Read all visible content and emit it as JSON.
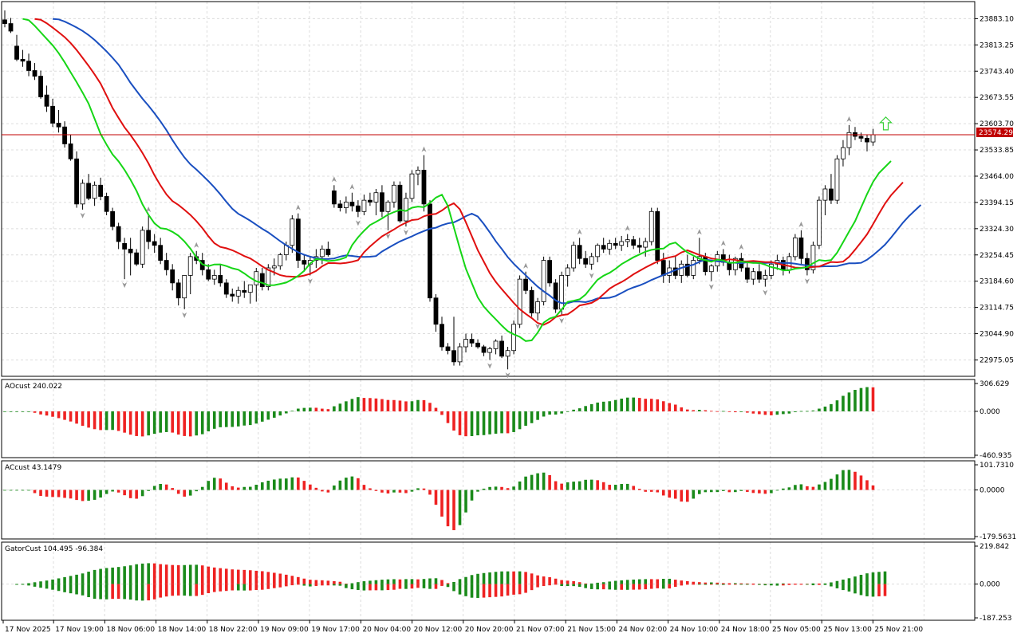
{
  "colors": {
    "background": "#ffffff",
    "grid": "#dcdcdc",
    "axis": "#000000",
    "bull_candle_body": "#ffffff",
    "bear_candle_body": "#000000",
    "candle_outline": "#000000",
    "jaw_line": "#1a4fc0",
    "teeth_line": "#e01010",
    "lips_line": "#16d616",
    "price_line": "#c00000",
    "price_label_bg": "#c00000",
    "price_label_text": "#ffffff",
    "hist_up": "#1a8a1a",
    "hist_down": "#ee2222",
    "fractal": "#999999",
    "signal_arrow": "#38d038"
  },
  "main": {
    "price_ticks": [
      "23883.10",
      "23813.25",
      "23743.40",
      "23673.55",
      "23603.70",
      "23533.85",
      "23464.00",
      "23394.15",
      "23324.30",
      "23254.45",
      "23184.60",
      "23114.75",
      "23044.90",
      "22975.05"
    ],
    "current_price": "23574.29"
  },
  "ao": {
    "label": "AOcust 240.022",
    "ticks": [
      "306.629",
      "0.000",
      "-460.935"
    ]
  },
  "ac": {
    "label": "ACcust 43.1479",
    "ticks": [
      "101.7310",
      "0.0000",
      "-179.5631"
    ]
  },
  "gator": {
    "label": "GatorCust 104.495 -96.384",
    "ticks": [
      "219.842",
      "0.000",
      "-187.253"
    ]
  },
  "time_axis": [
    "17 Nov 2025",
    "17 Nov 19:00",
    "18 Nov 06:00",
    "18 Nov 14:00",
    "18 Nov 22:00",
    "19 Nov 09:00",
    "19 Nov 17:00",
    "20 Nov 04:00",
    "20 Nov 12:00",
    "20 Nov 20:00",
    "21 Nov 07:00",
    "21 Nov 15:00",
    "24 Nov 02:00",
    "24 Nov 10:00",
    "24 Nov 18:00",
    "25 Nov 05:00",
    "25 Nov 13:00",
    "25 Nov 21:00"
  ],
  "chart_data": {
    "type": "candlestick",
    "symbol_scale": {
      "ylim": [
        22940,
        23920
      ]
    },
    "candles": [
      [
        23880,
        23905,
        23860,
        23870
      ],
      [
        23870,
        23885,
        23845,
        23850
      ],
      [
        23810,
        23840,
        23770,
        23775
      ],
      [
        23775,
        23800,
        23755,
        23770
      ],
      [
        23770,
        23790,
        23730,
        23745
      ],
      [
        23745,
        23765,
        23720,
        23730
      ],
      [
        23730,
        23745,
        23670,
        23675
      ],
      [
        23680,
        23705,
        23635,
        23650
      ],
      [
        23650,
        23670,
        23595,
        23605
      ],
      [
        23605,
        23640,
        23580,
        23595
      ],
      [
        23595,
        23610,
        23540,
        23550
      ],
      [
        23550,
        23575,
        23505,
        23510
      ],
      [
        23510,
        23530,
        23380,
        23390
      ],
      [
        23390,
        23455,
        23375,
        23445
      ],
      [
        23445,
        23470,
        23400,
        23405
      ],
      [
        23405,
        23450,
        23385,
        23440
      ],
      [
        23440,
        23460,
        23400,
        23410
      ],
      [
        23410,
        23420,
        23360,
        23370
      ],
      [
        23370,
        23380,
        23320,
        23330
      ],
      [
        23330,
        23340,
        23270,
        23290
      ],
      [
        23285,
        23300,
        23190,
        23270
      ],
      [
        23270,
        23300,
        23200,
        23260
      ],
      [
        23260,
        23270,
        23225,
        23230
      ],
      [
        23230,
        23330,
        23220,
        23320
      ],
      [
        23320,
        23360,
        23270,
        23290
      ],
      [
        23290,
        23310,
        23260,
        23280
      ],
      [
        23280,
        23300,
        23230,
        23240
      ],
      [
        23240,
        23260,
        23200,
        23215
      ],
      [
        23215,
        23230,
        23160,
        23180
      ],
      [
        23180,
        23190,
        23120,
        23140
      ],
      [
        23140,
        23200,
        23110,
        23200
      ],
      [
        23200,
        23260,
        23150,
        23250
      ],
      [
        23250,
        23265,
        23230,
        23240
      ],
      [
        23240,
        23260,
        23200,
        23215
      ],
      [
        23215,
        23230,
        23185,
        23190
      ],
      [
        23190,
        23215,
        23175,
        23200
      ],
      [
        23200,
        23230,
        23170,
        23180
      ],
      [
        23180,
        23190,
        23140,
        23150
      ],
      [
        23150,
        23165,
        23130,
        23145
      ],
      [
        23145,
        23170,
        23125,
        23160
      ],
      [
        23160,
        23185,
        23140,
        23155
      ],
      [
        23155,
        23175,
        23125,
        23175
      ],
      [
        23175,
        23220,
        23130,
        23210
      ],
      [
        23205,
        23220,
        23160,
        23170
      ],
      [
        23170,
        23230,
        23160,
        23220
      ],
      [
        23220,
        23245,
        23200,
        23225
      ],
      [
        23225,
        23260,
        23215,
        23255
      ],
      [
        23255,
        23290,
        23240,
        23280
      ],
      [
        23280,
        23360,
        23260,
        23350
      ],
      [
        23350,
        23365,
        23220,
        23240
      ],
      [
        23240,
        23255,
        23210,
        23230
      ],
      [
        23230,
        23250,
        23200,
        23240
      ],
      [
        23240,
        23270,
        23220,
        23250
      ],
      [
        23250,
        23280,
        23230,
        23270
      ],
      [
        23270,
        23290,
        23250,
        23255
      ],
      [
        23425,
        23440,
        23380,
        23390
      ],
      [
        23390,
        23400,
        23370,
        23380
      ],
      [
        23380,
        23410,
        23365,
        23395
      ],
      [
        23395,
        23420,
        23370,
        23385
      ],
      [
        23385,
        23400,
        23355,
        23370
      ],
      [
        23370,
        23415,
        23360,
        23400
      ],
      [
        23400,
        23420,
        23385,
        23395
      ],
      [
        23395,
        23430,
        23360,
        23420
      ],
      [
        23420,
        23440,
        23355,
        23370
      ],
      [
        23370,
        23400,
        23320,
        23395
      ],
      [
        23395,
        23450,
        23380,
        23440
      ],
      [
        23440,
        23450,
        23340,
        23345
      ],
      [
        23345,
        23420,
        23330,
        23405
      ],
      [
        23405,
        23480,
        23395,
        23470
      ],
      [
        23470,
        23490,
        23440,
        23480
      ],
      [
        23480,
        23520,
        23370,
        23390
      ],
      [
        23390,
        23400,
        23130,
        23140
      ],
      [
        23140,
        23150,
        23050,
        23070
      ],
      [
        23070,
        23090,
        23000,
        23010
      ],
      [
        23010,
        23020,
        22990,
        23000
      ],
      [
        23000,
        23090,
        22960,
        22970
      ],
      [
        22970,
        23020,
        22960,
        23010
      ],
      [
        23010,
        23045,
        22995,
        23030
      ],
      [
        23030,
        23045,
        23010,
        23020
      ],
      [
        23020,
        23030,
        23005,
        23010
      ],
      [
        23010,
        23015,
        22985,
        22995
      ],
      [
        22995,
        23010,
        22975,
        23005
      ],
      [
        23005,
        23030,
        22990,
        23025
      ],
      [
        23025,
        23040,
        22980,
        22985
      ],
      [
        22985,
        23010,
        22950,
        23000
      ],
      [
        23000,
        23080,
        22990,
        23070
      ],
      [
        23070,
        23200,
        23060,
        23190
      ],
      [
        23190,
        23210,
        23150,
        23160
      ],
      [
        23160,
        23170,
        23090,
        23100
      ],
      [
        23100,
        23140,
        23080,
        23130
      ],
      [
        23130,
        23250,
        23120,
        23240
      ],
      [
        23240,
        23250,
        23170,
        23180
      ],
      [
        23180,
        23190,
        23100,
        23110
      ],
      [
        23110,
        23210,
        23095,
        23200
      ],
      [
        23200,
        23230,
        23170,
        23220
      ],
      [
        23220,
        23290,
        23210,
        23280
      ],
      [
        23280,
        23300,
        23230,
        23245
      ],
      [
        23245,
        23265,
        23220,
        23230
      ],
      [
        23230,
        23260,
        23215,
        23250
      ],
      [
        23250,
        23285,
        23235,
        23280
      ],
      [
        23280,
        23300,
        23260,
        23270
      ],
      [
        23270,
        23295,
        23255,
        23285
      ],
      [
        23285,
        23300,
        23270,
        23280
      ],
      [
        23280,
        23305,
        23265,
        23290
      ],
      [
        23290,
        23310,
        23275,
        23295
      ],
      [
        23295,
        23305,
        23270,
        23280
      ],
      [
        23280,
        23300,
        23260,
        23275
      ],
      [
        23275,
        23300,
        23250,
        23290
      ],
      [
        23290,
        23380,
        23280,
        23370
      ],
      [
        23370,
        23380,
        23230,
        23240
      ],
      [
        23240,
        23260,
        23180,
        23200
      ],
      [
        23200,
        23240,
        23180,
        23220
      ],
      [
        23220,
        23250,
        23190,
        23200
      ],
      [
        23200,
        23240,
        23180,
        23230
      ],
      [
        23230,
        23255,
        23195,
        23200
      ],
      [
        23200,
        23250,
        23190,
        23240
      ],
      [
        23240,
        23300,
        23230,
        23250
      ],
      [
        23250,
        23260,
        23200,
        23210
      ],
      [
        23210,
        23230,
        23185,
        23225
      ],
      [
        23225,
        23265,
        23210,
        23255
      ],
      [
        23255,
        23270,
        23225,
        23235
      ],
      [
        23235,
        23255,
        23200,
        23215
      ],
      [
        23215,
        23250,
        23200,
        23245
      ],
      [
        23245,
        23260,
        23210,
        23220
      ],
      [
        23220,
        23235,
        23180,
        23190
      ],
      [
        23190,
        23220,
        23175,
        23210
      ],
      [
        23210,
        23230,
        23180,
        23190
      ],
      [
        23190,
        23215,
        23170,
        23200
      ],
      [
        23200,
        23240,
        23190,
        23230
      ],
      [
        23230,
        23255,
        23215,
        23240
      ],
      [
        23240,
        23250,
        23200,
        23215
      ],
      [
        23215,
        23260,
        23205,
        23250
      ],
      [
        23250,
        23310,
        23240,
        23300
      ],
      [
        23300,
        23320,
        23230,
        23245
      ],
      [
        23245,
        23260,
        23200,
        23215
      ],
      [
        23215,
        23290,
        23205,
        23280
      ],
      [
        23280,
        23410,
        23270,
        23400
      ],
      [
        23400,
        23440,
        23360,
        23430
      ],
      [
        23430,
        23470,
        23390,
        23400
      ],
      [
        23400,
        23520,
        23390,
        23510
      ],
      [
        23510,
        23560,
        23490,
        23540
      ],
      [
        23540,
        23600,
        23520,
        23580
      ],
      [
        23580,
        23595,
        23560,
        23570
      ],
      [
        23570,
        23580,
        23555,
        23565
      ],
      [
        23565,
        23575,
        23530,
        23555
      ],
      [
        23555,
        23590,
        23545,
        23574
      ]
    ],
    "alligator": {
      "jaw_name": "jaw",
      "teeth_name": "teeth",
      "lips_name": "lips"
    }
  }
}
